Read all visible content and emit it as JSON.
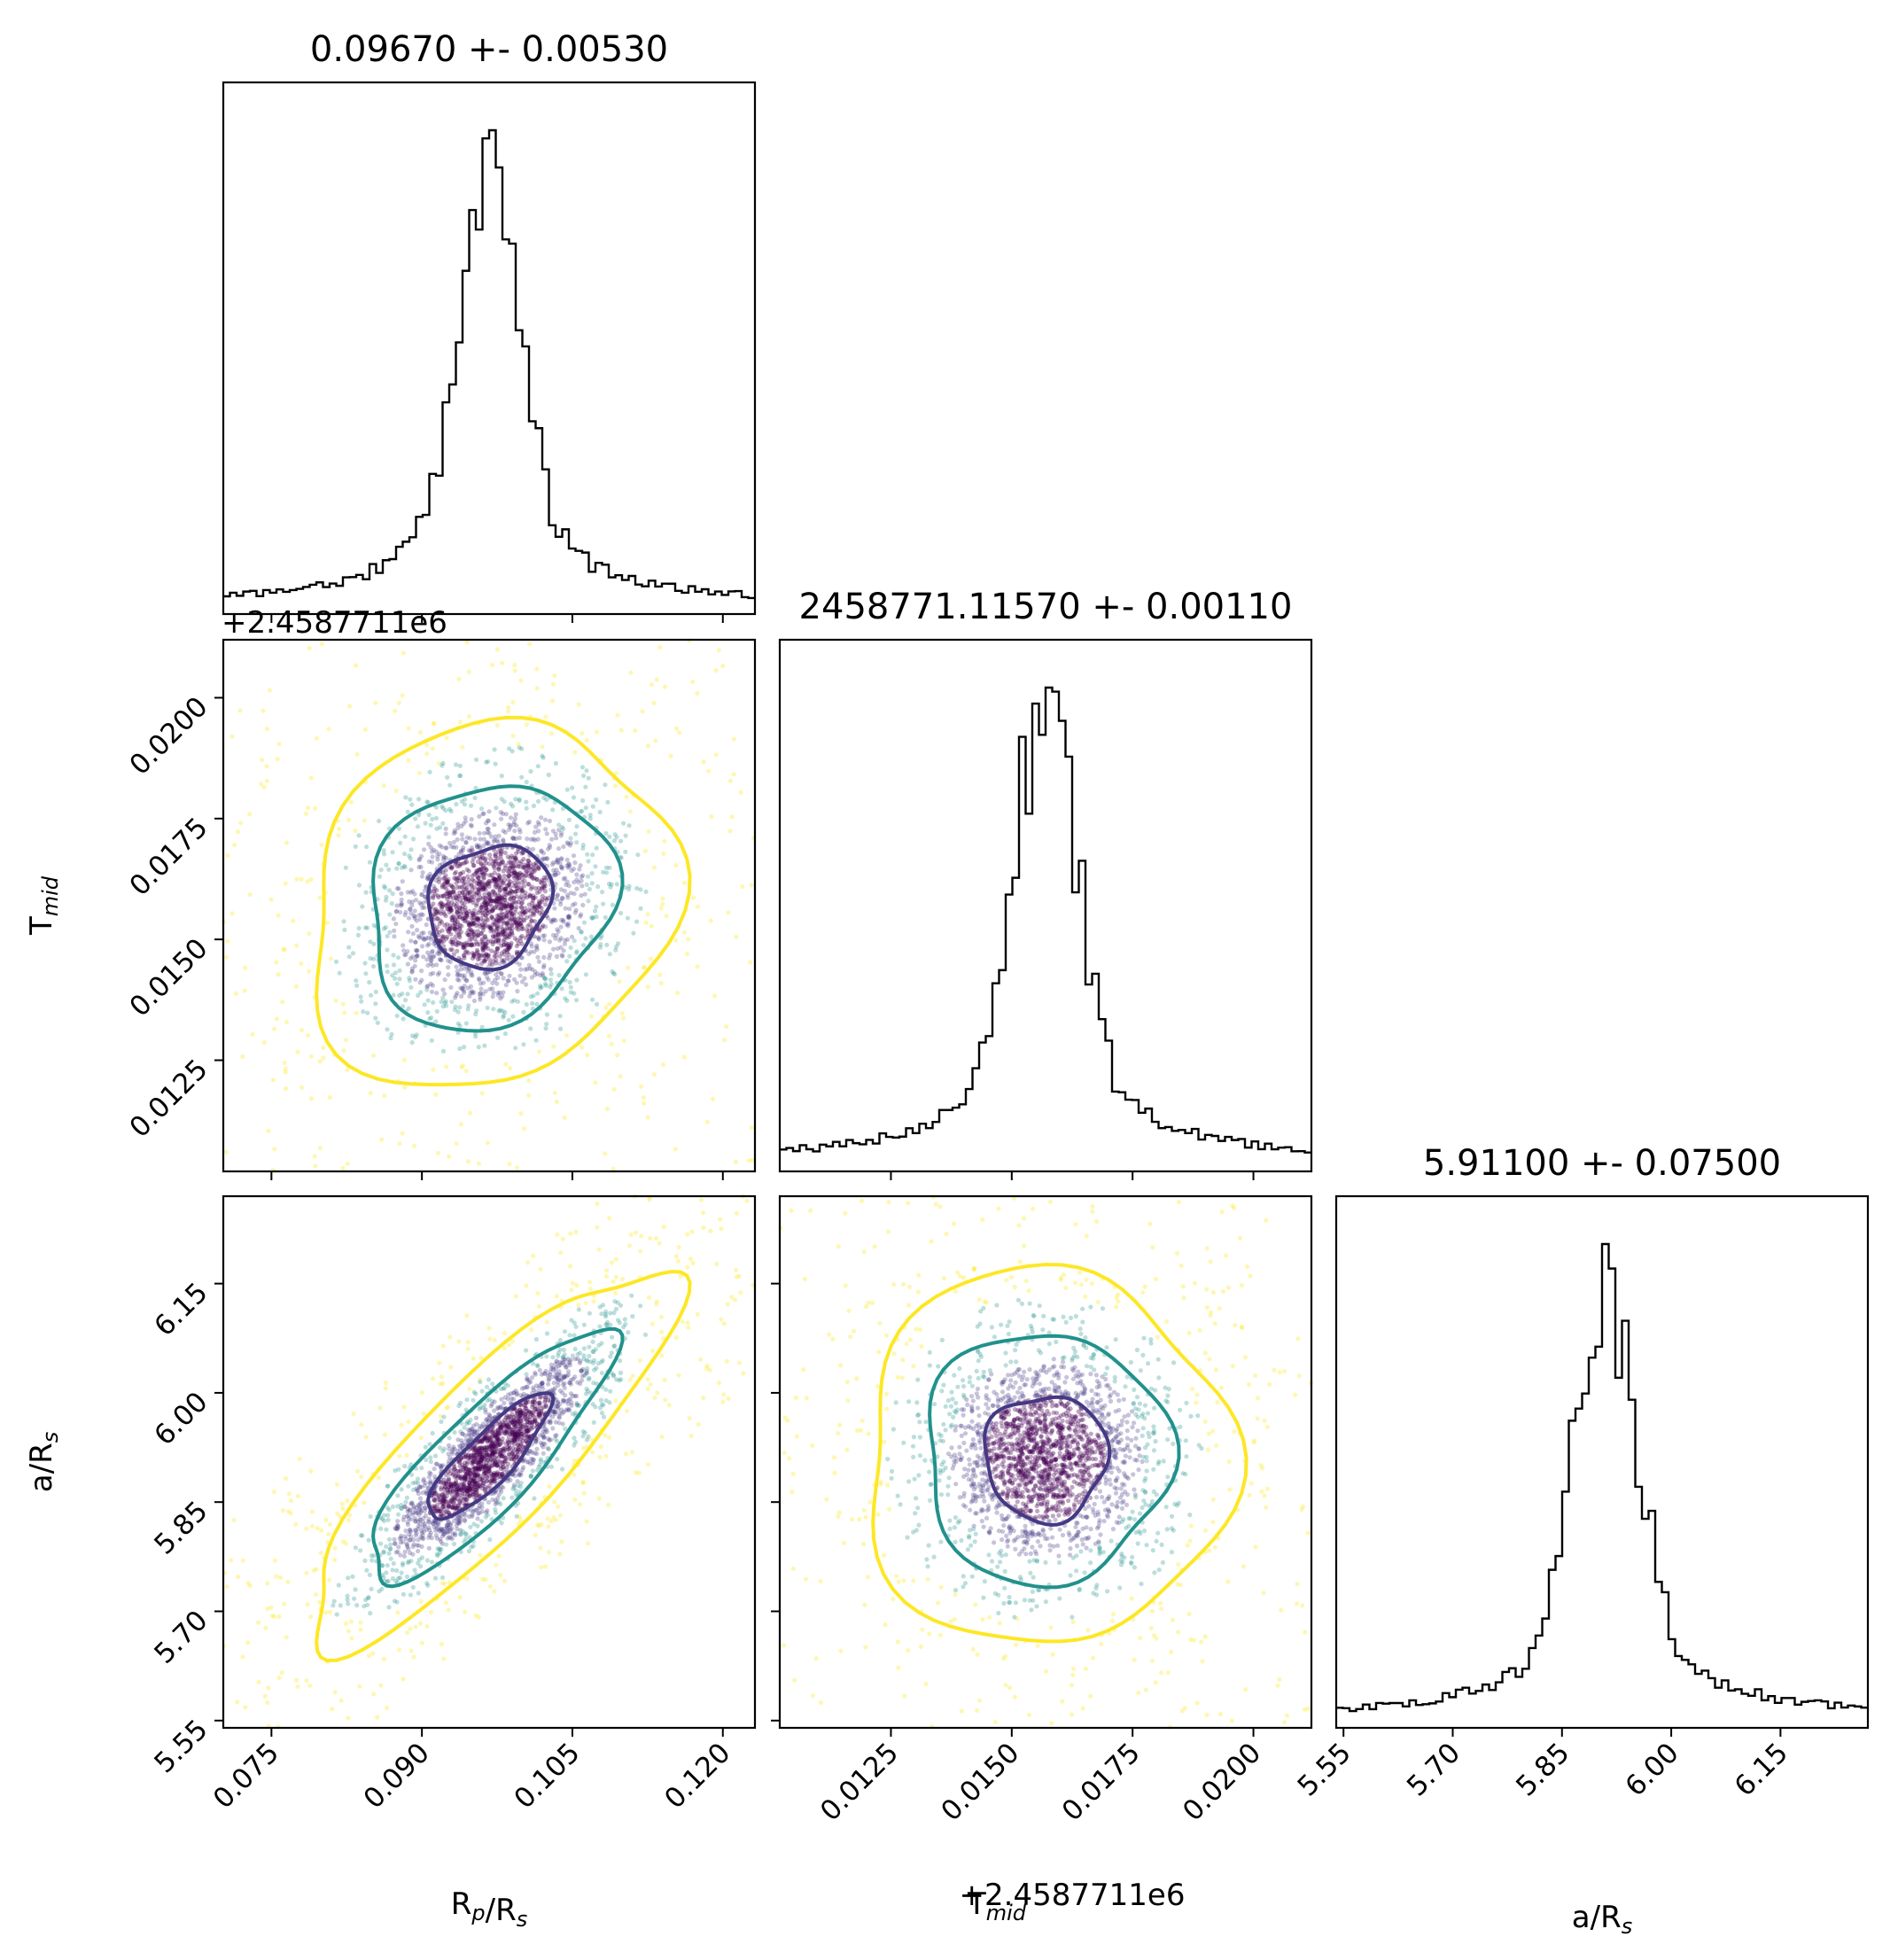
{
  "chart_data": {
    "type": "corner",
    "parameters": [
      {
        "key": "rp",
        "label_main": "R",
        "label_sub1": "p",
        "label_mid": "/R",
        "label_sub2": "s",
        "title": "0.09670 +- 0.00530",
        "median": 0.0967,
        "sigma": 0.0053,
        "range": [
          0.0702,
          0.1232
        ],
        "ticks": [
          "0.075",
          "0.090",
          "0.105",
          "0.120"
        ],
        "offset": ""
      },
      {
        "key": "tmid",
        "label_main": "T",
        "label_sub1": "mid",
        "label_mid": "",
        "label_sub2": "",
        "title": "2458771.11570 +- 0.00110",
        "median": 0.0157,
        "sigma": 0.0011,
        "range": [
          0.0102,
          0.0212
        ],
        "ticks": [
          "0.0125",
          "0.0150",
          "0.0175",
          "0.0200"
        ],
        "offset": "+2.4587711e6"
      },
      {
        "key": "ars",
        "label_main": "a/R",
        "label_sub1": "s",
        "label_mid": "",
        "label_sub2": "",
        "title": "5.91100 +- 0.07500",
        "median": 5.911,
        "sigma": 0.075,
        "range": [
          5.54,
          6.27
        ],
        "ticks": [
          "5.55",
          "5.70",
          "5.85",
          "6.00",
          "6.15"
        ],
        "offset": ""
      }
    ],
    "pairs": [
      {
        "x": "rp",
        "y": "tmid",
        "correlation": 0.15
      },
      {
        "x": "rp",
        "y": "ars",
        "correlation": 0.85
      },
      {
        "x": "tmid",
        "y": "ars",
        "correlation": 0.0
      }
    ],
    "contour_levels": [
      "dark",
      "mid",
      "outer"
    ],
    "colors": {
      "contour_inner": "#443983",
      "contour_mid": "#21918c",
      "contour_outer": "#fde725",
      "dense": "#440154",
      "histogram": "#000000"
    }
  }
}
